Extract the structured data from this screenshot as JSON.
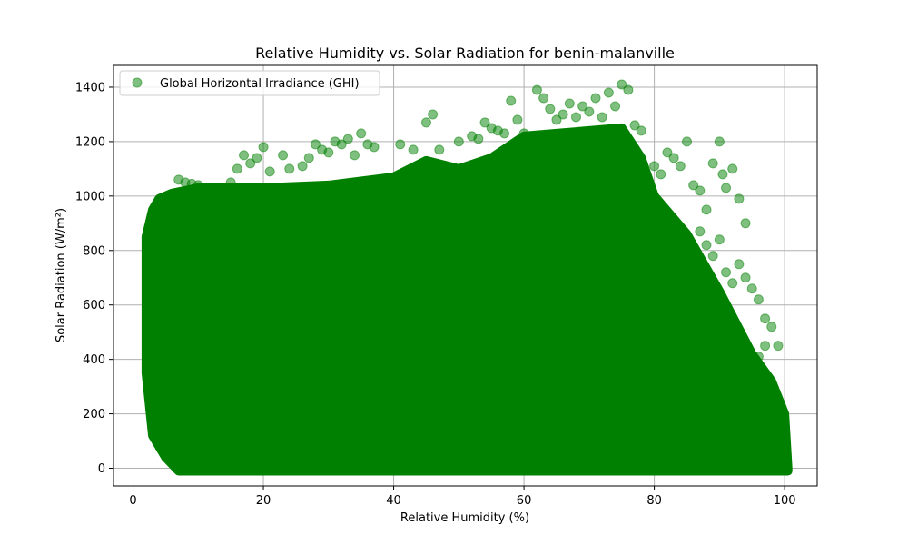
{
  "chart_data": {
    "type": "scatter",
    "title": "Relative Humidity vs. Solar Radiation for benin-malanville",
    "xlabel": "Relative Humidity (%)",
    "ylabel": "Solar Radiation (W/m²)",
    "xlim": [
      -3,
      105
    ],
    "ylim": [
      -65,
      1480
    ],
    "xticks": [
      0,
      20,
      40,
      60,
      80,
      100
    ],
    "yticks": [
      0,
      200,
      400,
      600,
      800,
      1000,
      1200,
      1400
    ],
    "grid": true,
    "legend_position": "top-left",
    "series": [
      {
        "name": "Global Horizontal Irradiance (GHI)",
        "color": "#008000",
        "alpha": 0.5,
        "dense_envelope": {
          "upper": [
            [
              2,
              850
            ],
            [
              3,
              950
            ],
            [
              4,
              990
            ],
            [
              6,
              1010
            ],
            [
              10,
              1030
            ],
            [
              20,
              1030
            ],
            [
              30,
              1040
            ],
            [
              40,
              1070
            ],
            [
              45,
              1130
            ],
            [
              50,
              1100
            ],
            [
              55,
              1140
            ],
            [
              60,
              1220
            ],
            [
              65,
              1230
            ],
            [
              70,
              1240
            ],
            [
              75,
              1250
            ],
            [
              78,
              1140
            ],
            [
              80,
              1000
            ],
            [
              85,
              860
            ],
            [
              90,
              650
            ],
            [
              95,
              420
            ],
            [
              98,
              320
            ],
            [
              100,
              200
            ],
            [
              100.5,
              0
            ]
          ],
          "lower": [
            [
              2,
              350
            ],
            [
              3,
              120
            ],
            [
              5,
              40
            ],
            [
              7,
              -10
            ],
            [
              100.5,
              -10
            ]
          ]
        },
        "outliers": [
          [
            7,
            1060
          ],
          [
            8,
            1050
          ],
          [
            9,
            1045
          ],
          [
            10,
            1040
          ],
          [
            12,
            1030
          ],
          [
            15,
            1050
          ],
          [
            16,
            1100
          ],
          [
            17,
            1150
          ],
          [
            18,
            1120
          ],
          [
            19,
            1140
          ],
          [
            20,
            1180
          ],
          [
            21,
            1090
          ],
          [
            23,
            1150
          ],
          [
            24,
            1100
          ],
          [
            26,
            1110
          ],
          [
            27,
            1140
          ],
          [
            28,
            1190
          ],
          [
            29,
            1170
          ],
          [
            30,
            1160
          ],
          [
            31,
            1200
          ],
          [
            32,
            1190
          ],
          [
            33,
            1210
          ],
          [
            34,
            1150
          ],
          [
            35,
            1230
          ],
          [
            36,
            1190
          ],
          [
            37,
            1180
          ],
          [
            41,
            1190
          ],
          [
            43,
            1170
          ],
          [
            45,
            1270
          ],
          [
            46,
            1300
          ],
          [
            47,
            1170
          ],
          [
            50,
            1200
          ],
          [
            52,
            1220
          ],
          [
            53,
            1210
          ],
          [
            54,
            1270
          ],
          [
            55,
            1250
          ],
          [
            56,
            1240
          ],
          [
            57,
            1230
          ],
          [
            58,
            1350
          ],
          [
            59,
            1280
          ],
          [
            60,
            1230
          ],
          [
            62,
            1390
          ],
          [
            63,
            1360
          ],
          [
            64,
            1320
          ],
          [
            65,
            1280
          ],
          [
            66,
            1300
          ],
          [
            67,
            1340
          ],
          [
            68,
            1290
          ],
          [
            69,
            1330
          ],
          [
            70,
            1310
          ],
          [
            71,
            1360
          ],
          [
            72,
            1290
          ],
          [
            73,
            1380
          ],
          [
            74,
            1330
          ],
          [
            75,
            1410
          ],
          [
            76,
            1390
          ],
          [
            77,
            1260
          ],
          [
            78,
            1240
          ],
          [
            80,
            1110
          ],
          [
            81,
            1080
          ],
          [
            82,
            1160
          ],
          [
            83,
            1140
          ],
          [
            84,
            1110
          ],
          [
            85,
            1200
          ],
          [
            86,
            1040
          ],
          [
            87,
            1020
          ],
          [
            88,
            950
          ],
          [
            89,
            1120
          ],
          [
            90,
            1200
          ],
          [
            90.5,
            1080
          ],
          [
            91,
            1030
          ],
          [
            92,
            1100
          ],
          [
            93,
            990
          ],
          [
            94,
            900
          ],
          [
            87,
            870
          ],
          [
            88,
            820
          ],
          [
            89,
            780
          ],
          [
            90,
            840
          ],
          [
            91,
            720
          ],
          [
            92,
            680
          ],
          [
            93,
            750
          ],
          [
            94,
            700
          ],
          [
            95,
            660
          ],
          [
            96,
            620
          ],
          [
            97,
            550
          ],
          [
            98,
            520
          ],
          [
            99,
            450
          ],
          [
            97,
            450
          ],
          [
            96,
            410
          ],
          [
            95,
            380
          ]
        ]
      }
    ]
  }
}
